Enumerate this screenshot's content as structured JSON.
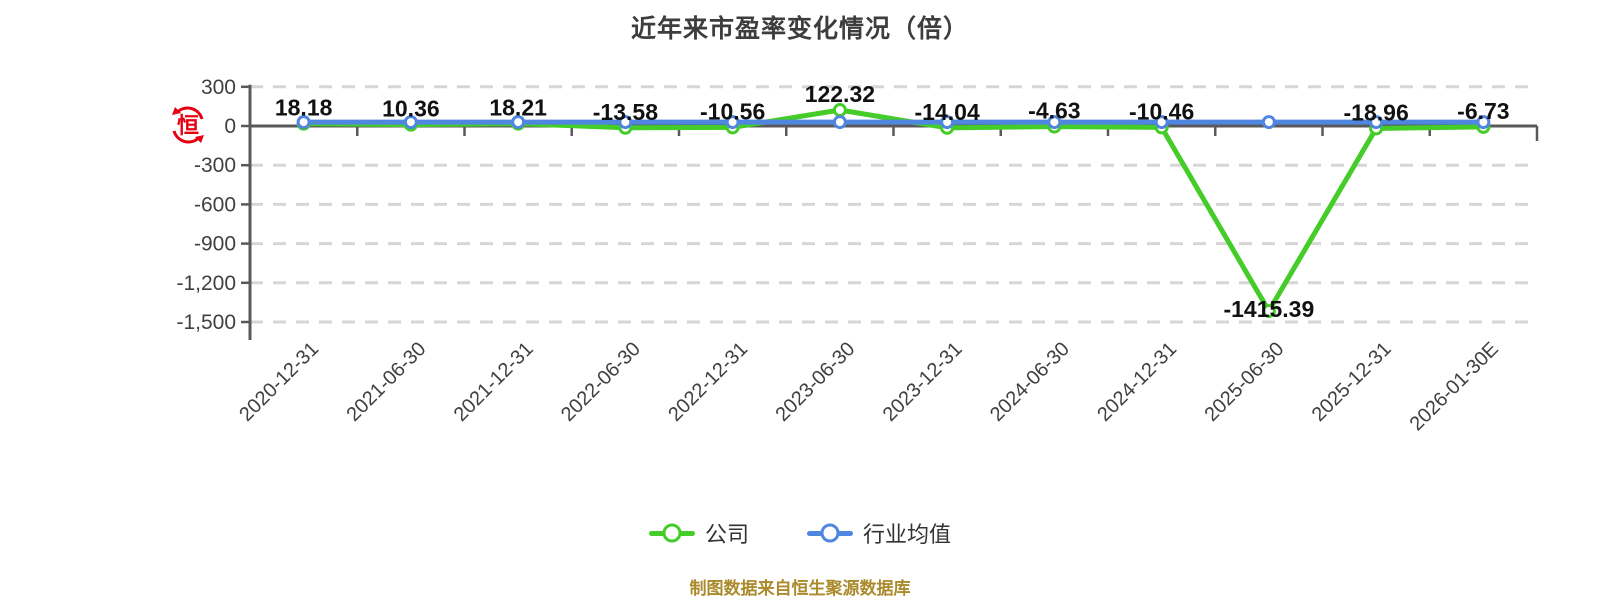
{
  "page": {
    "background": "#ffffff"
  },
  "header": {
    "title": "近年来市盈率变化情况（倍）"
  },
  "icons": {
    "logo_char": "恒",
    "logo_name": "hundsun-logo"
  },
  "colors": {
    "company_green": "#44cc28",
    "industry_blue": "#4e86e0",
    "grid": "#d6d6d6",
    "axis": "#595959",
    "axis_label": "#404040",
    "value_label": "#111111",
    "title": "#3d3d3d",
    "footer_gold": "#ab8a2c",
    "logo_red": "#e60012"
  },
  "chart_data": {
    "type": "line",
    "title": "近年来市盈率变化情况（倍）",
    "categories": [
      "2020-12-31",
      "2021-06-30",
      "2021-12-31",
      "2022-06-30",
      "2022-12-31",
      "2023-06-30",
      "2023-12-31",
      "2024-06-30",
      "2024-12-31",
      "2025-06-30",
      "2025-12-31",
      "2026-01-30E"
    ],
    "series": [
      {
        "name": "公司",
        "color": "#44cc28",
        "values": [
          18.18,
          10.36,
          18.21,
          -13.58,
          -10.56,
          122.32,
          -14.04,
          -4.63,
          -10.46,
          -1415.39,
          -18.96,
          -6.73
        ],
        "labels": [
          "18.18",
          "10.36",
          "18.21",
          "-13.58",
          "-10.56",
          "122.32",
          "-14.04",
          "-4.63",
          "-10.46",
          "-1415.39",
          "-18.96",
          "-6.73"
        ]
      },
      {
        "name": "行业均值",
        "color": "#4e86e0",
        "values": [
          30,
          30,
          30,
          30,
          30,
          30,
          30,
          30,
          30,
          30,
          30,
          30
        ],
        "estimated": true,
        "note": "flat line just above zero; exact values not labeled in chart"
      }
    ],
    "y_axis": {
      "ticks": [
        {
          "label": "300",
          "value": 300
        },
        {
          "label": "0",
          "value": 0
        },
        {
          "label": "-300",
          "value": -300
        },
        {
          "label": "-600",
          "value": -600
        },
        {
          "label": "-900",
          "value": -900
        },
        {
          "label": "-1,200",
          "value": -1200
        },
        {
          "label": "-1,500",
          "value": -1500
        }
      ],
      "range": [
        -1500,
        300
      ]
    },
    "xlabel": "",
    "ylabel": "",
    "grid": "horizontal-dashed",
    "legend_position": "bottom"
  },
  "footer": {
    "source_note": "制图数据来自恒生聚源数据库"
  }
}
